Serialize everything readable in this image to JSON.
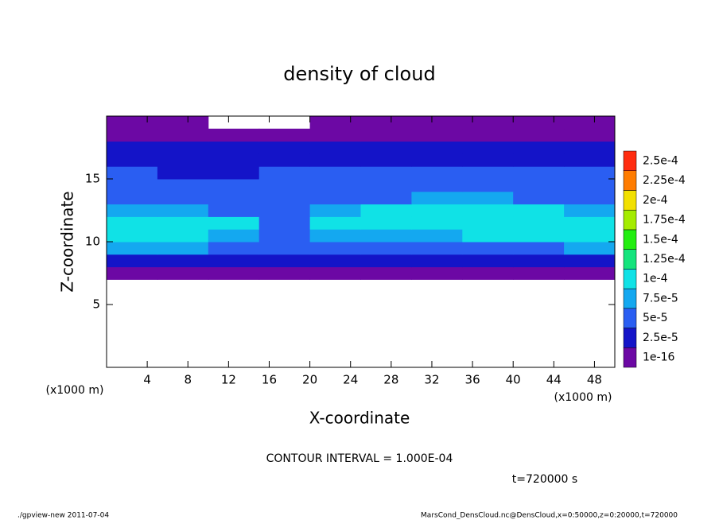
{
  "chart_data": {
    "type": "heatmap",
    "title": "density of cloud",
    "xlabel": "X-coordinate",
    "ylabel": "Z-coordinate",
    "xunit": "(x1000 m)",
    "yunit": "(x1000 m)",
    "contour_note": "CONTOUR INTERVAL = 1.000E-04",
    "time_note": "t=720000 s",
    "footer_left": "./gpview-new  2011-07-04",
    "footer_right": "MarsCond_DensCloud.nc@DensCloud,x=0:50000,z=0:20000,t=720000",
    "xlim": [
      0,
      50
    ],
    "ylim": [
      0,
      20
    ],
    "xticks": [
      4,
      8,
      12,
      16,
      20,
      24,
      28,
      32,
      36,
      40,
      44,
      48
    ],
    "yticks": [
      5,
      10,
      15
    ],
    "x": [
      0,
      5,
      10,
      15,
      20,
      25,
      30,
      35,
      40,
      45,
      50
    ],
    "z": [
      7,
      8,
      9,
      10,
      11,
      12,
      13,
      14,
      15,
      16,
      17,
      18,
      19,
      20
    ],
    "values": [
      [
        1e-05,
        1e-05,
        1e-05,
        1e-05,
        1e-05,
        1e-05,
        1e-05,
        1e-05,
        1e-05,
        1e-05
      ],
      [
        3e-05,
        3e-05,
        3e-05,
        3e-05,
        3e-05,
        3e-05,
        3e-05,
        3e-05,
        3e-05,
        3e-05
      ],
      [
        8e-05,
        8e-05,
        7e-05,
        6e-05,
        6e-05,
        6e-05,
        6e-05,
        7e-05,
        7e-05,
        8e-05
      ],
      [
        0.00011,
        0.00011,
        9e-05,
        6e-05,
        9e-05,
        9e-05,
        9e-05,
        0.0001,
        0.00011,
        0.00011
      ],
      [
        0.00012,
        0.00011,
        0.0001,
        5e-05,
        0.0001,
        0.00011,
        0.00011,
        0.00011,
        0.00011,
        0.00012
      ],
      [
        9e-05,
        8e-05,
        7e-05,
        5e-05,
        8e-05,
        0.0001,
        0.00011,
        0.00011,
        0.0001,
        9e-05
      ],
      [
        6e-05,
        6e-05,
        5e-05,
        5e-05,
        6e-05,
        7e-05,
        8e-05,
        8e-05,
        7e-05,
        6e-05
      ],
      [
        5e-05,
        5e-05,
        5e-05,
        6e-05,
        5e-05,
        6e-05,
        6e-05,
        6e-05,
        6e-05,
        5e-05
      ],
      [
        5e-05,
        4e-05,
        4e-05,
        5e-05,
        5e-05,
        5e-05,
        5e-05,
        5e-05,
        5e-05,
        5e-05
      ],
      [
        4e-05,
        4e-05,
        4e-05,
        4e-05,
        4e-05,
        4e-05,
        4e-05,
        4e-05,
        4e-05,
        4e-05
      ],
      [
        3e-05,
        3e-05,
        3e-05,
        3e-05,
        3e-05,
        3e-05,
        3e-05,
        3e-05,
        3e-05,
        3e-05
      ],
      [
        1e-05,
        1e-05,
        1e-05,
        1e-05,
        1e-05,
        1e-05,
        1e-05,
        1e-05,
        1e-05,
        1e-05
      ],
      [
        1e-05,
        1e-05,
        null,
        null,
        1e-05,
        1e-05,
        1e-05,
        1e-05,
        1e-05,
        1e-05
      ]
    ],
    "levels": [
      {
        "value": 1e-16,
        "label": "1e-16"
      },
      {
        "value": 2.5e-05,
        "label": "2.5e-5"
      },
      {
        "value": 5e-05,
        "label": "5e-5"
      },
      {
        "value": 7.5e-05,
        "label": "7.5e-5"
      },
      {
        "value": 0.0001,
        "label": "1e-4"
      },
      {
        "value": 0.000125,
        "label": "1.25e-4"
      },
      {
        "value": 0.00015,
        "label": "1.5e-4"
      },
      {
        "value": 0.000175,
        "label": "1.75e-4"
      },
      {
        "value": 0.0002,
        "label": "2e-4"
      },
      {
        "value": 0.000225,
        "label": "2.25e-4"
      },
      {
        "value": 0.00025,
        "label": "2.5e-4"
      }
    ],
    "colors": [
      "#6c08a4",
      "#1414c8",
      "#2a5ef2",
      "#14a8f0",
      "#10e2e6",
      "#14e47c",
      "#22ee10",
      "#a4ec00",
      "#f2e000",
      "#ff7c00",
      "#ff2c10"
    ]
  }
}
